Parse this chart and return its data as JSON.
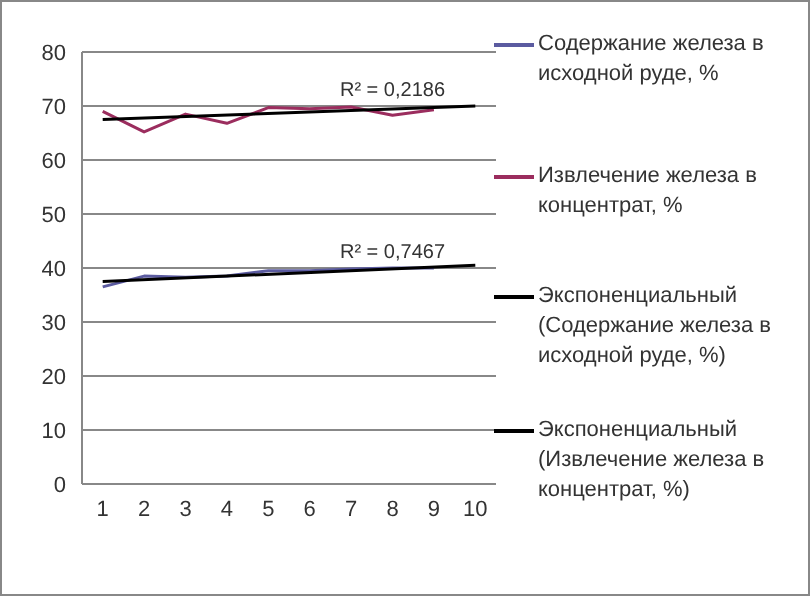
{
  "chart_data": {
    "type": "line",
    "x": [
      1,
      2,
      3,
      4,
      5,
      6,
      7,
      8,
      9,
      10
    ],
    "xlim": [
      0.5,
      10.5
    ],
    "xticks": [
      1,
      2,
      3,
      4,
      5,
      6,
      7,
      8,
      9,
      10
    ],
    "ylim": [
      0,
      80
    ],
    "yticks": [
      0,
      10,
      20,
      30,
      40,
      50,
      60,
      70,
      80
    ],
    "grid": "y",
    "legend": "right",
    "marker": "none",
    "series": [
      {
        "name": "Содержание железа в исходной руде, %",
        "color": "#5b5ba0",
        "values": [
          36.5,
          38.5,
          38.3,
          38.5,
          39.5,
          39.5,
          39.8,
          40,
          40,
          null
        ]
      },
      {
        "name": "Извлечение железа в концентрат, %",
        "color": "#9b2d5e",
        "values": [
          69,
          65.2,
          68.5,
          66.8,
          69.7,
          69.5,
          69.8,
          68.3,
          69.3,
          null
        ]
      },
      {
        "name": "Экспоненциальный (Содержание железа в исходной руде, %)",
        "color": "#000000",
        "values": [
          37.5,
          null,
          null,
          null,
          null,
          null,
          null,
          null,
          null,
          40.5
        ]
      },
      {
        "name": "Экспоненциальный (Извлечение железа в концентрат, %)",
        "color": "#000000",
        "values": [
          67.5,
          null,
          null,
          null,
          null,
          null,
          null,
          null,
          null,
          70
        ]
      }
    ],
    "annotations": [
      {
        "text": "R² = 0,2186",
        "x": 8,
        "y": 70
      },
      {
        "text": "R² = 0,7467",
        "x": 8,
        "y": 40
      }
    ]
  }
}
